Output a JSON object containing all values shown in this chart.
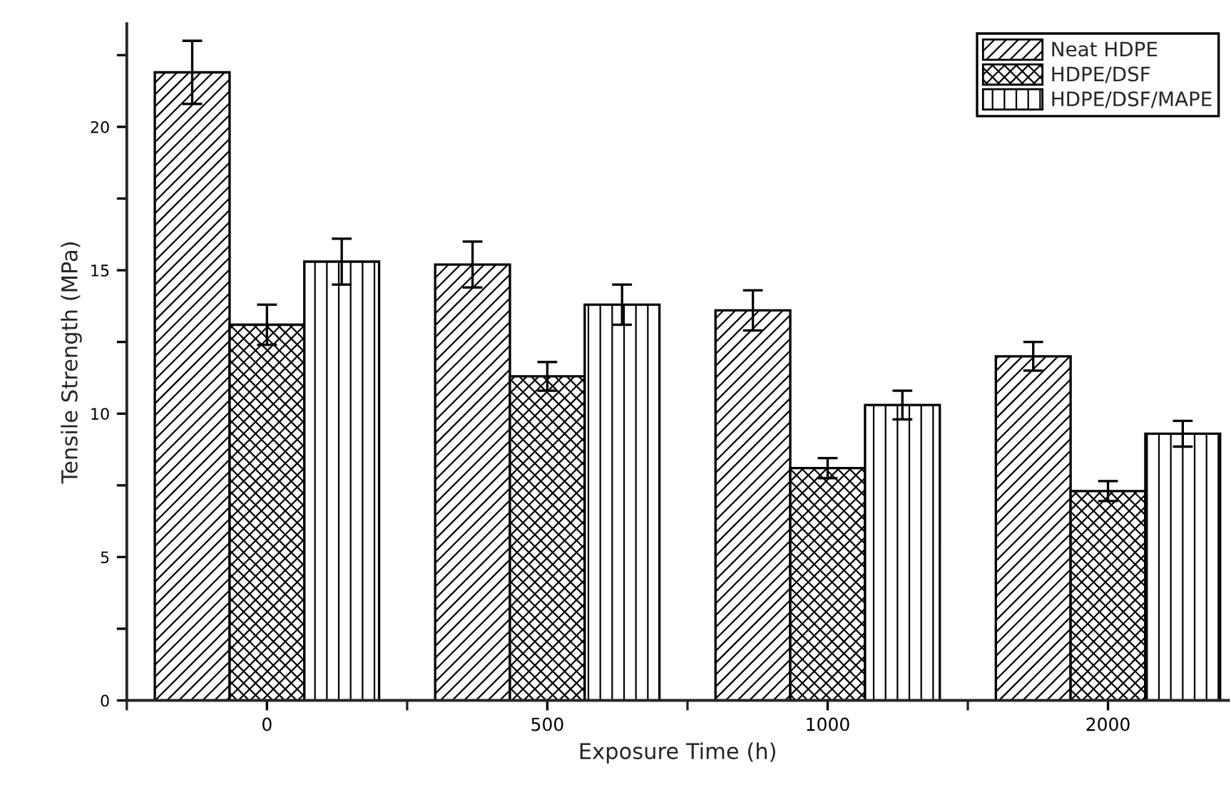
{
  "chart_data": {
    "type": "bar",
    "xlabel": "Exposure Time (h)",
    "ylabel": "Tensile Strength (MPa)",
    "categories": [
      "0",
      "500",
      "1000",
      "2000"
    ],
    "series": [
      {
        "name": "Neat HDPE",
        "color": "#000000",
        "values": [
          21.9,
          15.2,
          13.6,
          12.0
        ],
        "errors": [
          1.1,
          0.8,
          0.7,
          0.5
        ]
      },
      {
        "name": "HDPE/DSF",
        "color": "#000000",
        "values": [
          13.1,
          11.3,
          8.1,
          7.3
        ],
        "errors": [
          0.7,
          0.5,
          0.35,
          0.35
        ]
      },
      {
        "name": "HDPE/DSF/MAPE",
        "color": "#000000",
        "values": [
          15.3,
          13.8,
          10.3,
          9.3
        ],
        "errors": [
          0.8,
          0.7,
          0.5,
          0.45
        ]
      }
    ],
    "ylim": [
      0,
      23.6
    ],
    "yticks": [
      0,
      {
        "value": 2.5,
        "label": null
      },
      5,
      {
        "value": 7.5,
        "label": null
      },
      10,
      {
        "value": 12.5,
        "label": null
      },
      15,
      {
        "value": 17.5,
        "label": null
      },
      20,
      {
        "value": 22.5,
        "label": null
      }
    ],
    "legend": "top right",
    "grid": false
  }
}
